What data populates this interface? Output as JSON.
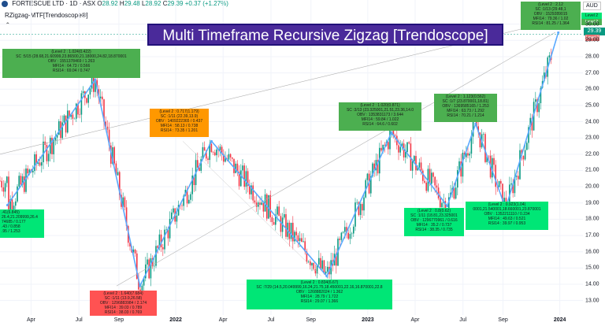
{
  "header": {
    "symbol": "FORTESCUE LTD · 1D · ASX",
    "ohlc": [
      {
        "key": "O",
        "value": "28.92"
      },
      {
        "key": "H",
        "value": "29.48"
      },
      {
        "key": "L",
        "value": "28.92"
      },
      {
        "key": "C",
        "value": "29.39"
      }
    ],
    "change": "+0.37 (+1.27%)",
    "indicator": "RZigzag-MTF[Trendoscope®]",
    "currency": "AUD"
  },
  "title": "Multi Timeframe Recursive Zigzag [Trendoscope]",
  "price_tag": "29.39",
  "level_tag": "Level 2",
  "colors": {
    "up": "#089981",
    "down": "#f23645",
    "zigzag": "#5aa9ff",
    "title_bg": "#4a2a9a"
  },
  "labels": [
    {
      "id": "a",
      "color": "green",
      "lines": [
        "(Level 2 : 1.024(0.422)",
        "SC :5/15 (28.68,21.60999,23.86500,21.18000,24.82,18.870001",
        "OBV : 1551378469 / 1.263",
        "MFI14 : 64.73 / 0.566",
        "RSI14 : 69.04 / 0.747"
      ]
    },
    {
      "id": "b",
      "color": "bright",
      "lines": [
        ".41(6.845)",
        "26.4,21.209999,26.4",
        "74685 / 0.177",
        ".43 / 0.858",
        ".95 / 1.253"
      ]
    },
    {
      "id": "c",
      "color": "orange",
      "lines": [
        "(Level 2 : 0.717(1.179)",
        "SC :1/11 (22.39,13.9)",
        "OBV : 1409222365 / 0.437",
        "MFI14 : 58.13 / 0.738",
        "RSI14 : 73.35 / 1.201"
      ]
    },
    {
      "id": "d",
      "color": "red",
      "lines": [
        "(Level 2 : 1.640(7.684)",
        "SC :1/11 (13.9,26.58)",
        "OBV : 1296883984 / 2.174",
        "MFI14 : 39.03 / 0.789",
        "RSI14 : 38.03 / 0.769"
      ]
    },
    {
      "id": "e",
      "color": "bright",
      "lines": [
        "(Level 2 : 0.834(6.67)",
        "SC :7/29 (14.5,20.049999,16.24,21.75,18.450001,22.16,16.870001,22.8",
        "OBV : 1268882024 / 1.362",
        "MFI14 : 28.79 / 1.722",
        "RSI14 : 29.07 / 1.366"
      ]
    },
    {
      "id": "f",
      "color": "green",
      "lines": [
        "(Level 2 : 1.020(0.871)",
        "SC :3/13 (23.325001,21.51,23.36,14.0",
        "OBV : 1353831173 / 3.644",
        "MFI14 : 59.84 / 1.022",
        "RSI14 : 64.6 / 0.602"
      ]
    },
    {
      "id": "g",
      "color": "bright",
      "lines": [
        "(Level 2 : 0.8(0.62)",
        "SC :1/11 (18.81,23.325001",
        "OBV : 1296770961 / 0.616",
        "MFI14 : 35.2 / 0.737",
        "RSI14 : 38.35 / 0.735"
      ]
    },
    {
      "id": "h",
      "color": "green",
      "lines": [
        "(Level 2 : 1.123(0.562)",
        "SC :1/7 (23.870001,18.81)",
        "OBV : 1369585165 / 1.253",
        "MFI14 : 63.73 / 1.292",
        "RSI14 : 70.21 / 1.214"
      ]
    },
    {
      "id": "i",
      "color": "bright",
      "lines": [
        "(Level 2 : 0.923(1.04)",
        "0001,21.540001,18.660001,23.870001",
        "OBV : 1352211110 / 0.234",
        "MFI14 : 49.63 / 0.521",
        "RSI14 : 39.97 / 0.953"
      ]
    },
    {
      "id": "j",
      "color": "green",
      "lines": [
        "(Level 2 : 2.12",
        "SC :1/13 (29.48,1",
        "OBV : 1529289015",
        "MFI14 : 79.36 / 1.02",
        "RSI14 : 81.25 / 1.364"
      ]
    }
  ],
  "chart_data": {
    "type": "line",
    "title": "Multi Timeframe Recursive Zigzag [Trendoscope]",
    "x_ticks": [
      "Apr",
      "Jul",
      "Sep",
      "2022",
      "Apr",
      "Jul",
      "Sep",
      "2023",
      "Apr",
      "Jul",
      "Sep",
      "2024"
    ],
    "y_ticks": [
      13.0,
      14.0,
      15.0,
      16.0,
      17.0,
      18.0,
      19.0,
      20.0,
      21.0,
      22.0,
      23.0,
      24.0,
      25.0,
      26.0,
      27.0,
      28.0,
      29.0,
      30.0
    ],
    "ylim": [
      12.5,
      31.0
    ],
    "series": [
      {
        "x": [
          "2021-02-15",
          "2021-08-01",
          "2021-10-25",
          "2022-03-10",
          "2022-10-15",
          "2023-02-15",
          "2023-06-01",
          "2023-07-25",
          "2023-09-20",
          "2023-12-29"
        ],
        "y": [
          18.87,
          26.58,
          13.9,
          22.8,
          14.5,
          23.325,
          18.81,
          23.87,
          18.66,
          29.48
        ]
      }
    ],
    "last_price": 29.39
  }
}
